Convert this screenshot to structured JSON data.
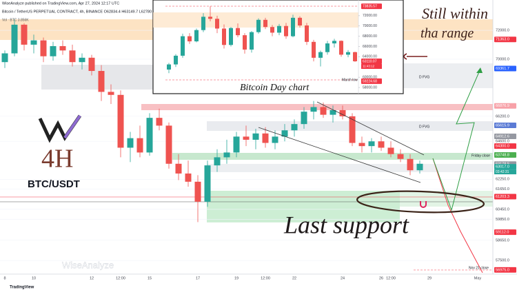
{
  "header": {
    "publisher": "WiseAnalyze published on TradingView.com, Apr 27, 2024 12:17 UTC",
    "symbol": "Bitcoin / TetherUS PERPETUAL CONTRACT, 4h, BINANCE  O62834.4  H63149.7  L62780",
    "volume": "Vol · BTC  3.856K"
  },
  "annotations": {
    "timeframe": "4H",
    "pair": "BTC/USDT",
    "range_line1": "Still within",
    "range_line2": "tha range",
    "support": "Last support",
    "inset_title": "Bitcoin Day chart",
    "fvg_upper": "D FVG",
    "fvg_lower": "D FVG",
    "friday_close": "Friday close",
    "march_low": "March low",
    "nov_close": "Nov 21 close",
    "watermark": "WiseAnalyze",
    "footer": "TradingView"
  },
  "chart_data": [
    {
      "type": "candlestick",
      "log_scale": true,
      "grid": true,
      "up_color": "#26a69a",
      "down_color": "#ef5350",
      "categories": [
        "8",
        null,
        null,
        "10",
        null,
        null,
        null,
        null,
        null,
        "12",
        null,
        null,
        "12:00",
        null,
        null,
        "15",
        null,
        null,
        null,
        null,
        "17",
        null,
        null,
        null,
        "19",
        null,
        null,
        "12:00",
        null,
        null,
        "22",
        null,
        null,
        null,
        null,
        "24",
        null,
        null,
        null,
        "26",
        "12:00",
        null,
        null,
        null,
        "29",
        null,
        null,
        null,
        null,
        "May"
      ],
      "open": [
        69800,
        70400,
        72400,
        71000,
        71300,
        70200,
        70900,
        70600,
        69800,
        70100,
        69200,
        67800,
        67600,
        64200,
        64800,
        63900,
        66100,
        65600,
        63200,
        62600,
        62100,
        60900,
        63100,
        63600,
        63900,
        64900,
        64700,
        65100,
        64500,
        64900,
        65300,
        65700,
        66500,
        66800,
        66300,
        66600,
        66200,
        64500,
        64300,
        64600,
        64200,
        63800,
        63500,
        62800,
        null,
        null,
        null,
        null,
        null,
        null
      ],
      "high": [
        70600,
        72800,
        72500,
        71700,
        71500,
        71200,
        71300,
        71000,
        70400,
        70300,
        69600,
        68300,
        67900,
        65200,
        65600,
        66400,
        66700,
        65800,
        63800,
        63400,
        62500,
        63400,
        64100,
        64700,
        65200,
        65600,
        65400,
        65500,
        65300,
        65700,
        66000,
        66800,
        67200,
        67100,
        66900,
        66900,
        66400,
        64900,
        64800,
        64900,
        64600,
        64100,
        63800,
        63400,
        null,
        null,
        null,
        null,
        null,
        null
      ],
      "low": [
        69400,
        70200,
        70600,
        70400,
        69800,
        69900,
        70300,
        69500,
        69300,
        68900,
        67200,
        67000,
        63600,
        63300,
        63600,
        63700,
        65300,
        62900,
        62200,
        61800,
        59700,
        60600,
        62700,
        63200,
        63600,
        64300,
        64100,
        64200,
        64100,
        64600,
        64900,
        65400,
        66000,
        66100,
        65800,
        66000,
        64300,
        63900,
        63900,
        64000,
        63600,
        63300,
        62500,
        62600,
        null,
        null,
        null,
        null,
        null,
        null
      ],
      "close": [
        70400,
        72400,
        71000,
        71300,
        70200,
        70900,
        70600,
        69800,
        70100,
        69200,
        67800,
        67600,
        64200,
        64800,
        63900,
        66100,
        65600,
        63200,
        62600,
        62100,
        60900,
        63100,
        63600,
        63900,
        64900,
        64700,
        65100,
        64500,
        64900,
        65300,
        65700,
        66500,
        66800,
        66300,
        66600,
        66200,
        64500,
        64300,
        64600,
        64200,
        63800,
        63500,
        62800,
        63200,
        null,
        null,
        null,
        null,
        null,
        null
      ],
      "ylim": [
        56740,
        73770
      ],
      "yticks": [
        {
          "value": 72000,
          "label": "72000.0"
        },
        {
          "value": 70000,
          "label": "70000.0"
        },
        {
          "value": 66200,
          "label": "66200.0"
        },
        {
          "value": 64600,
          "label": "64600.0"
        },
        {
          "value": 62250,
          "label": "62250.0"
        },
        {
          "value": 61650,
          "label": "61650.0"
        },
        {
          "value": 60450,
          "label": "60450.0"
        },
        {
          "value": 59850,
          "label": "59850.0"
        },
        {
          "value": 58650,
          "label": "58650.0"
        },
        {
          "value": 57500,
          "label": "57500.0"
        }
      ],
      "price_labels": [
        {
          "value": 71363,
          "label": "71363.0",
          "color": "#f23645"
        },
        {
          "value": 69361.7,
          "label": "69361.7",
          "color": "#2962ff"
        },
        {
          "value": 66876.9,
          "label": "66876.9",
          "color": "#f7a1a8"
        },
        {
          "value": 65615.9,
          "label": "65615.9",
          "color": "#5b7bd5"
        },
        {
          "value": 64912.6,
          "label": "64912.6",
          "color": "#9598a1"
        },
        {
          "value": 64300,
          "label": "64300.0",
          "color": "#f23645"
        },
        {
          "value": 63748.8,
          "label": "63748.8",
          "color": "#4caf50"
        },
        {
          "value": 63178.5,
          "label": "63178.5",
          "color": "#9598a1"
        },
        {
          "value": 63017,
          "label": "63017.0",
          "color": "#26a69a",
          "countdown": "03:42:31"
        },
        {
          "value": 61203.3,
          "label": "61203.3",
          "color": "#f23645"
        },
        {
          "value": 59112,
          "label": "59112.0",
          "color": "#f23645"
        },
        {
          "value": 56975,
          "label": "56975.0",
          "color": "#f23645"
        }
      ]
    },
    {
      "type": "candlestick",
      "log_scale": false,
      "grid": false,
      "up_color": "#26a69a",
      "down_color": "#ef5350",
      "open": [
        61500,
        62500,
        64200,
        68000,
        67000,
        69200,
        71800,
        71400,
        69500,
        66300,
        69600,
        68200,
        65400,
        68800,
        71200,
        69800,
        68700,
        70000,
        68000,
        71600,
        70100,
        66900,
        63800,
        64900,
        66600,
        67100,
        64400,
        64900
      ],
      "high": [
        62800,
        64500,
        68500,
        68600,
        69500,
        72500,
        73835,
        72000,
        70300,
        69800,
        70500,
        68600,
        69000,
        71500,
        71600,
        70200,
        70400,
        70600,
        72200,
        71900,
        70600,
        67300,
        65200,
        67100,
        67500,
        67200,
        65300,
        65000
      ],
      "low": [
        60800,
        62000,
        63800,
        66500,
        66800,
        68800,
        70900,
        68600,
        65600,
        66000,
        67800,
        64600,
        64800,
        68500,
        69400,
        68000,
        68200,
        67500,
        67800,
        69700,
        66300,
        63100,
        62100,
        64400,
        65800,
        64000,
        63900,
        63000
      ],
      "close": [
        62500,
        64200,
        68000,
        67000,
        69200,
        71800,
        71400,
        69500,
        66300,
        69600,
        68200,
        65400,
        68800,
        71200,
        69800,
        68700,
        70000,
        68000,
        71600,
        70100,
        66900,
        63800,
        64900,
        66600,
        67100,
        64400,
        64900,
        63110
      ],
      "ylim": [
        57200,
        74800
      ],
      "yticks": [
        {
          "value": 72000,
          "label": "72000.00"
        },
        {
          "value": 70000,
          "label": "70000.00"
        },
        {
          "value": 68000,
          "label": "68000.00"
        },
        {
          "value": 66000,
          "label": "66000.00"
        },
        {
          "value": 64000,
          "label": "64000.00"
        },
        {
          "value": 60000,
          "label": "60000.00"
        },
        {
          "value": 58000,
          "label": "58000.00"
        }
      ],
      "price_labels": [
        {
          "value": 73835.57,
          "label": "73835.57",
          "color": "#f23645"
        },
        {
          "value": 63110.07,
          "label": "63110.07",
          "color": "#f23645",
          "countdown": "11:43:12"
        },
        {
          "value": 59224.68,
          "label": "59224.68",
          "color": "#f23645"
        }
      ]
    }
  ]
}
